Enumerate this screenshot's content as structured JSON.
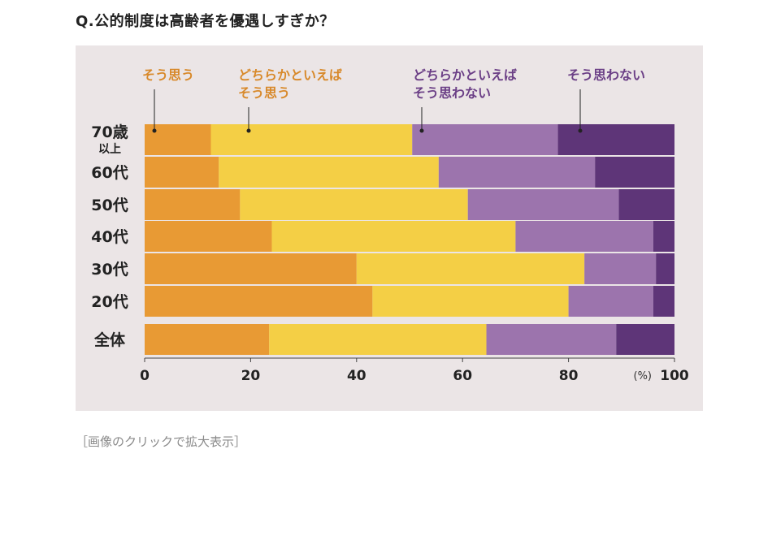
{
  "question": "Q.公的制度は高齢者を優遇しすぎか？",
  "caption": "［画像のクリックで拡大表示］",
  "chart_data": {
    "type": "bar",
    "orientation": "horizontal",
    "stacked": true,
    "categories": [
      [
        "70歳",
        "以上"
      ],
      [
        "60代"
      ],
      [
        "50代"
      ],
      [
        "40代"
      ],
      [
        "30代"
      ],
      [
        "20代"
      ],
      [
        "全体"
      ]
    ],
    "series": [
      {
        "name": "そう思う",
        "label_lines": [
          "そう思う"
        ],
        "color": "#e89a34",
        "label_color": "#d8892a",
        "values": [
          12.5,
          14,
          18,
          24,
          40,
          43,
          23.5
        ]
      },
      {
        "name": "どちらかといえばそう思う",
        "label_lines": [
          "どちらかといえば",
          "そう思う"
        ],
        "color": "#f4cf45",
        "label_color": "#d8892a",
        "values": [
          38,
          41.5,
          43,
          46,
          43,
          37,
          41
        ]
      },
      {
        "name": "どちらかといえばそう思わない",
        "label_lines": [
          "どちらかといえば",
          "そう思わない"
        ],
        "color": "#9c74ad",
        "label_color": "#6b3f86",
        "values": [
          27.5,
          29.5,
          28.5,
          26,
          13.5,
          16,
          24.5
        ]
      },
      {
        "name": "そう思わない",
        "label_lines": [
          "そう思わない"
        ],
        "color": "#5e3578",
        "label_color": "#6b3f86",
        "values": [
          22,
          15,
          10.5,
          4,
          3.5,
          4,
          11
        ]
      }
    ],
    "xlim": [
      0,
      100
    ],
    "xticks": [
      "0",
      "20",
      "40",
      "60",
      "80",
      "100"
    ],
    "xunit": "(%)",
    "grid": false,
    "legend": "top"
  }
}
